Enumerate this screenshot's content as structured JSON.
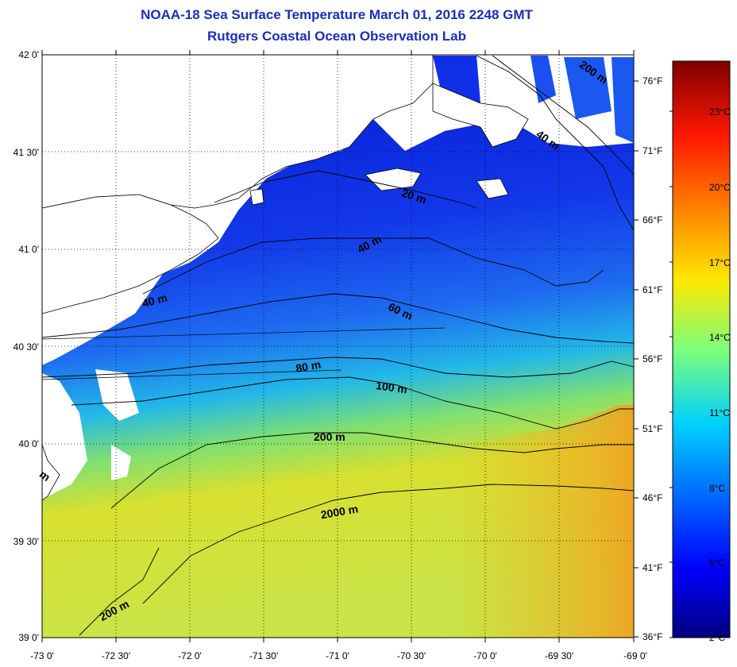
{
  "header": {
    "title_line1": "NOAA-18 Sea Surface Temperature March 01, 2016 2248 GMT",
    "title_line2": "Rutgers Coastal Ocean Observation Lab"
  },
  "map": {
    "lat_ticks": [
      "42 0'",
      "41 30'",
      "41 0'",
      "40 30'",
      "40 0'",
      "39 30'",
      "39 0'"
    ],
    "lon_ticks": [
      "-73 0'",
      "-72 30'",
      "-72 0'",
      "-71 30'",
      "-71 0'",
      "-70 30'",
      "-70 0'",
      "-69 30'",
      "-69 0'"
    ],
    "fahrenheit_ticks": [
      "76°F",
      "71°F",
      "66°F",
      "61°F",
      "56°F",
      "51°F",
      "46°F",
      "41°F",
      "36°F"
    ],
    "depth_labels": [
      "200 m",
      "40 m",
      "20 m",
      "40 m",
      "40 m",
      "60 m",
      "80 m",
      "100 m",
      "200 m",
      "2000 m",
      "200 m",
      "m"
    ],
    "colors": {
      "land": "#ffffff",
      "coastal_cold": "#0a2be0",
      "offshore_warm": "#e8d820",
      "contour": "#000000",
      "title": "#1a2fb4"
    }
  },
  "colorbar": {
    "celsius_ticks": [
      "23°C",
      "20°C",
      "17°C",
      "14°C",
      "11°C",
      "8°C",
      "5°C",
      "2°C"
    ]
  }
}
